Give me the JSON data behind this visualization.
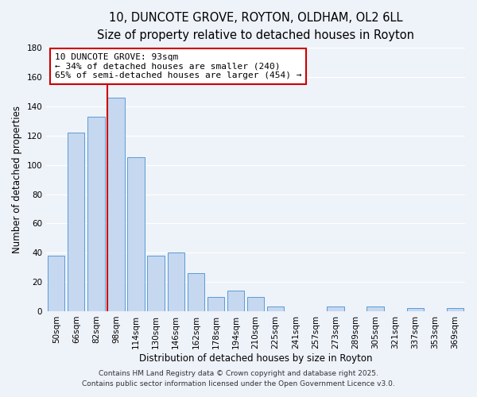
{
  "title": "10, DUNCOTE GROVE, ROYTON, OLDHAM, OL2 6LL",
  "subtitle": "Size of property relative to detached houses in Royton",
  "xlabel": "Distribution of detached houses by size in Royton",
  "ylabel": "Number of detached properties",
  "bar_labels": [
    "50sqm",
    "66sqm",
    "82sqm",
    "98sqm",
    "114sqm",
    "130sqm",
    "146sqm",
    "162sqm",
    "178sqm",
    "194sqm",
    "210sqm",
    "225sqm",
    "241sqm",
    "257sqm",
    "273sqm",
    "289sqm",
    "305sqm",
    "321sqm",
    "337sqm",
    "353sqm",
    "369sqm"
  ],
  "bar_values": [
    38,
    122,
    133,
    146,
    105,
    38,
    40,
    26,
    10,
    14,
    10,
    3,
    0,
    0,
    3,
    0,
    3,
    0,
    2,
    0,
    2
  ],
  "bar_color": "#c5d8f0",
  "bar_edge_color": "#5b9bd5",
  "vline_color": "#cc0000",
  "ylim": [
    0,
    180
  ],
  "yticks": [
    0,
    20,
    40,
    60,
    80,
    100,
    120,
    140,
    160,
    180
  ],
  "annotation_line1": "10 DUNCOTE GROVE: 93sqm",
  "annotation_line2": "← 34% of detached houses are smaller (240)",
  "annotation_line3": "65% of semi-detached houses are larger (454) →",
  "annotation_box_color": "#ffffff",
  "annotation_box_edgecolor": "#cc0000",
  "footer_line1": "Contains HM Land Registry data © Crown copyright and database right 2025.",
  "footer_line2": "Contains public sector information licensed under the Open Government Licence v3.0.",
  "bg_color": "#eef2f9",
  "grid_color": "#ffffff",
  "title_fontsize": 10.5,
  "subtitle_fontsize": 9,
  "axis_label_fontsize": 8.5,
  "tick_fontsize": 7.5,
  "annotation_fontsize": 8,
  "footer_fontsize": 6.5
}
